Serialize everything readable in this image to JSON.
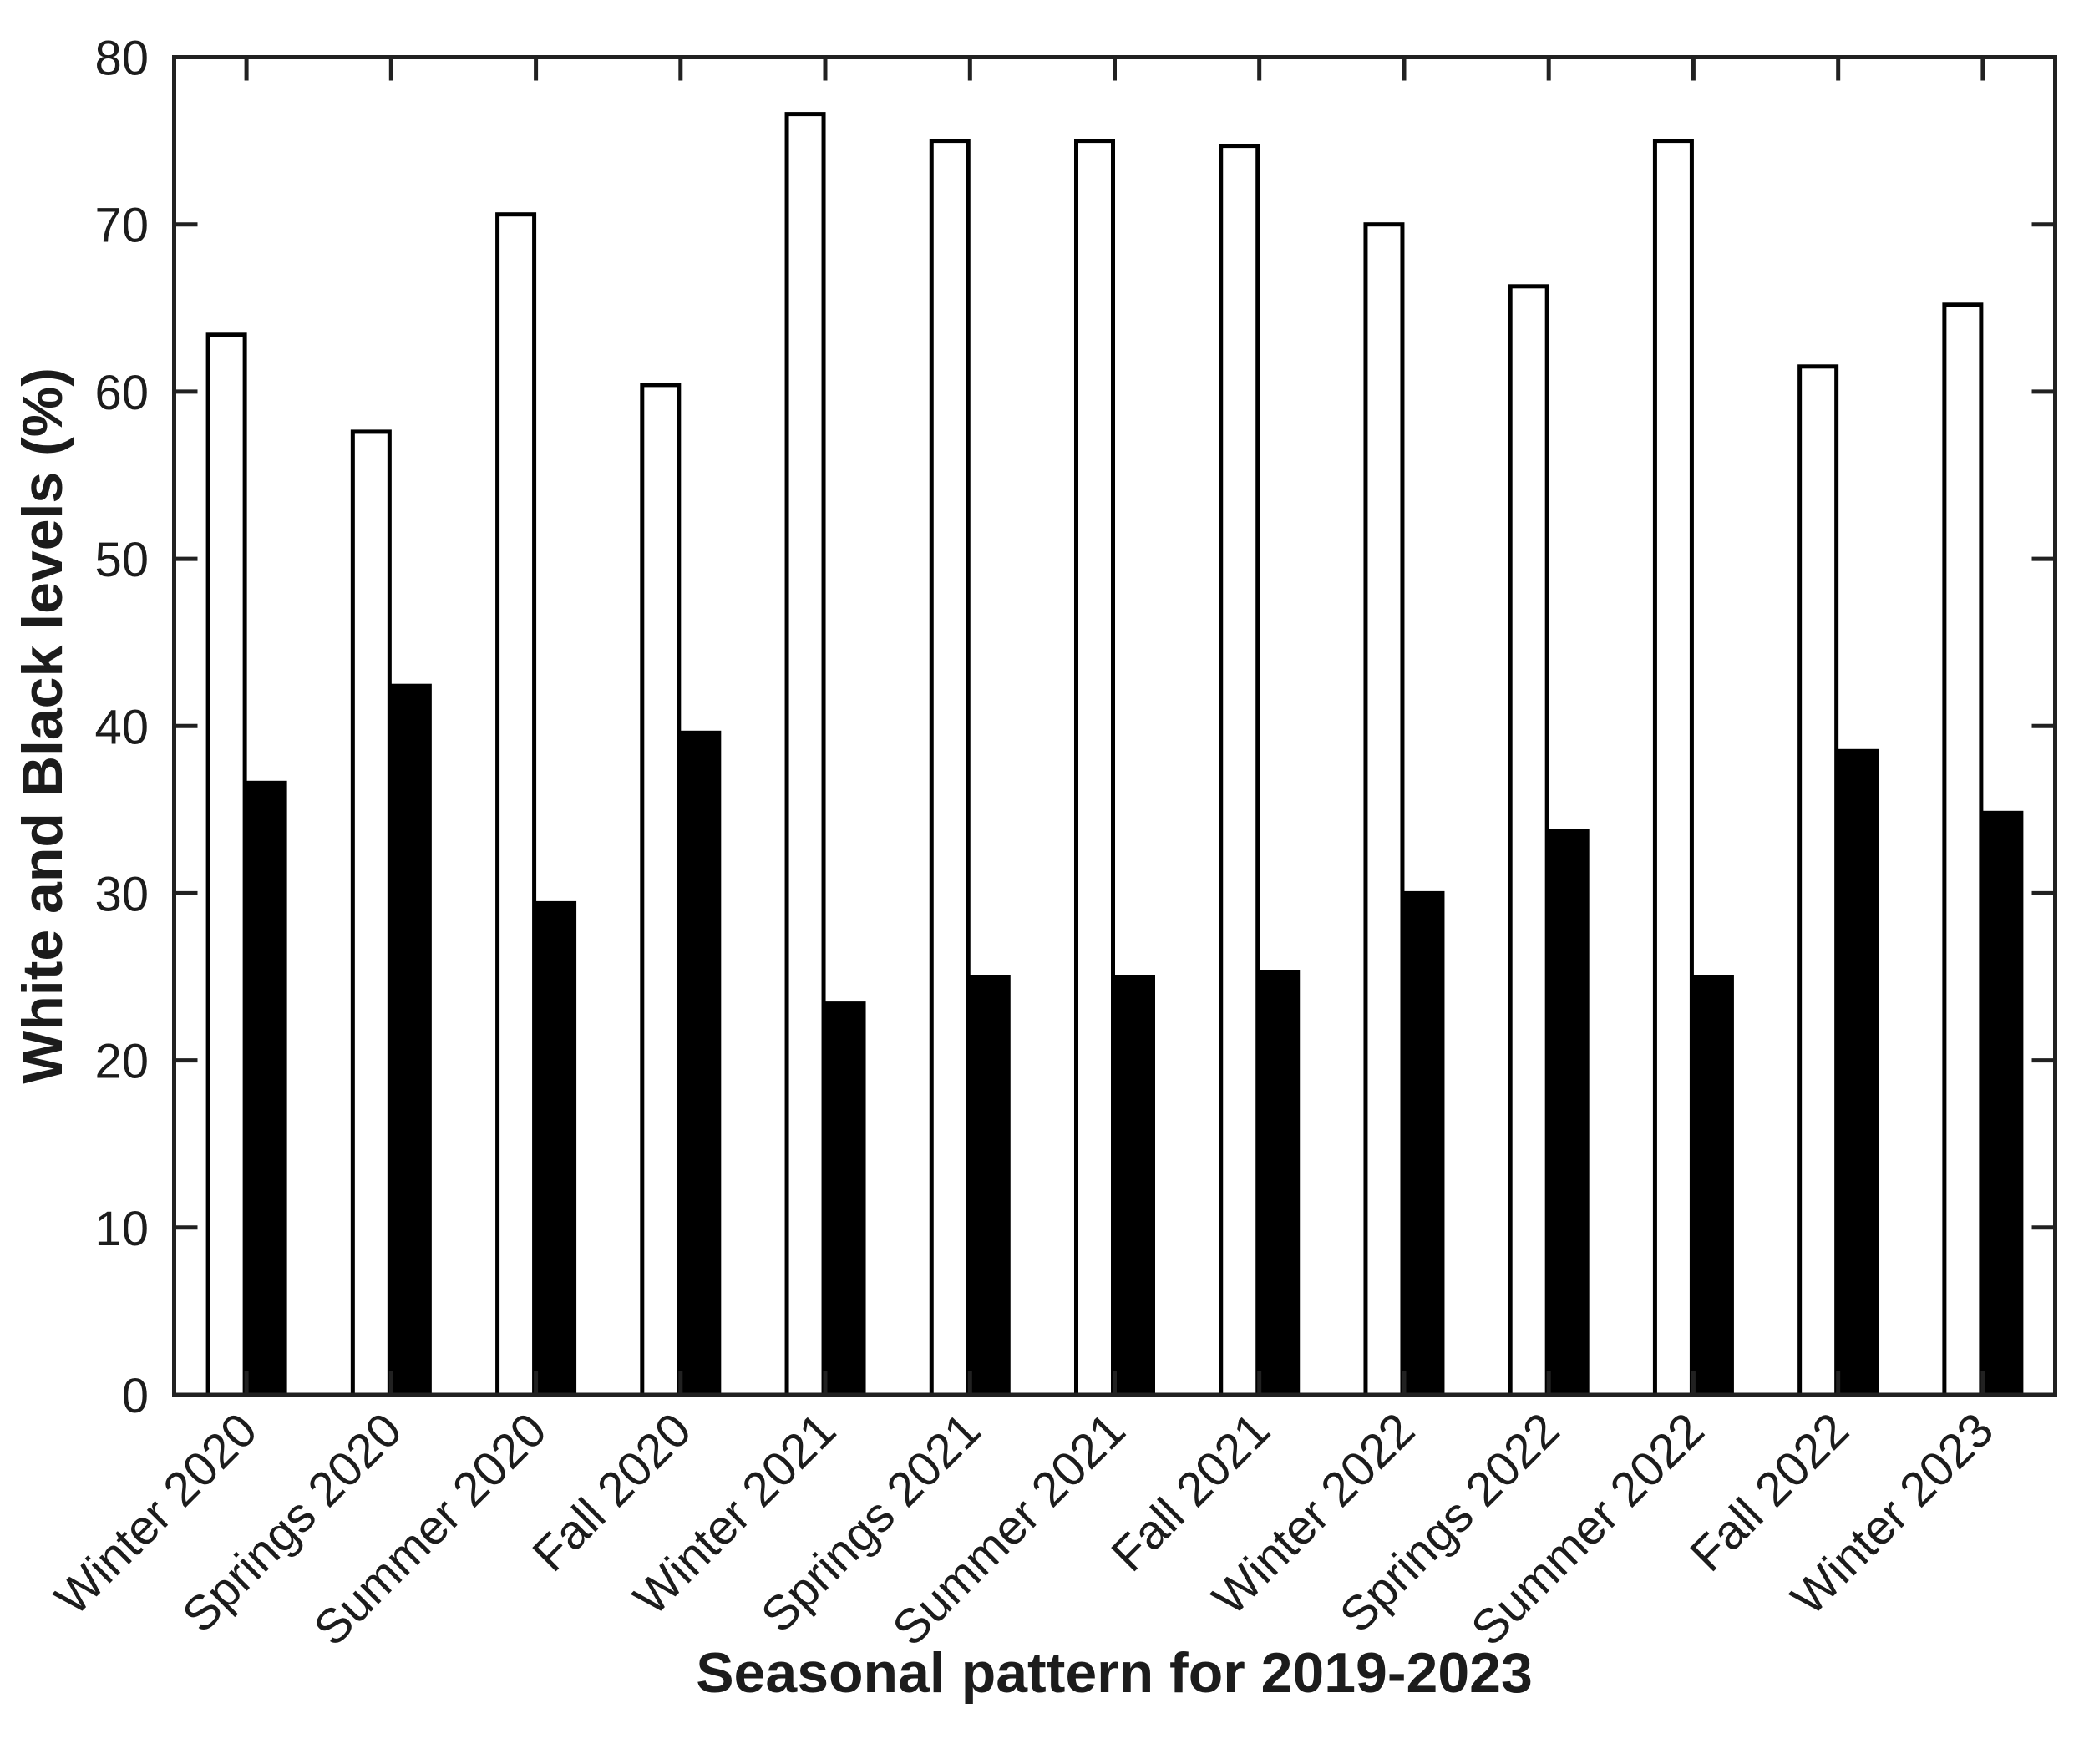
{
  "figure": {
    "background": "#ffffff"
  },
  "chart_data": {
    "type": "bar",
    "title": "",
    "xlabel": "Seasonal pattern for 2019-2023",
    "ylabel": "White and Black levels (%)",
    "categories": [
      "Winter 2020",
      "Springs 2020",
      "Summer 2020",
      "Fall 2020",
      "Winter 2021",
      "Springs 2021",
      "Summer 2021",
      "Fall 2021",
      "Winter 2022",
      "Springs 2022",
      "Summer 2022",
      "Fall 2022",
      "Winter 2023"
    ],
    "series": [
      {
        "name": "White",
        "fill": "#ffffff",
        "outline": "#000000",
        "values": [
          63.4,
          57.6,
          70.6,
          60.4,
          76.6,
          75.0,
          75.0,
          74.7,
          70.0,
          66.3,
          75.0,
          61.5,
          65.2
        ]
      },
      {
        "name": "Black",
        "fill": "#000000",
        "outline": "#000000",
        "values": [
          36.6,
          42.4,
          29.4,
          39.6,
          23.4,
          25.0,
          25.0,
          25.3,
          30.0,
          33.7,
          25.0,
          38.5,
          34.8
        ]
      }
    ],
    "ylim": [
      0,
      80
    ],
    "yticks": [
      0,
      10,
      20,
      30,
      40,
      50,
      60,
      70,
      80
    ],
    "grid": false,
    "legend_position": "none",
    "axis_color": "#212121",
    "tick_direction": "in",
    "box": true,
    "xtick_label_rotation_deg": -45
  }
}
